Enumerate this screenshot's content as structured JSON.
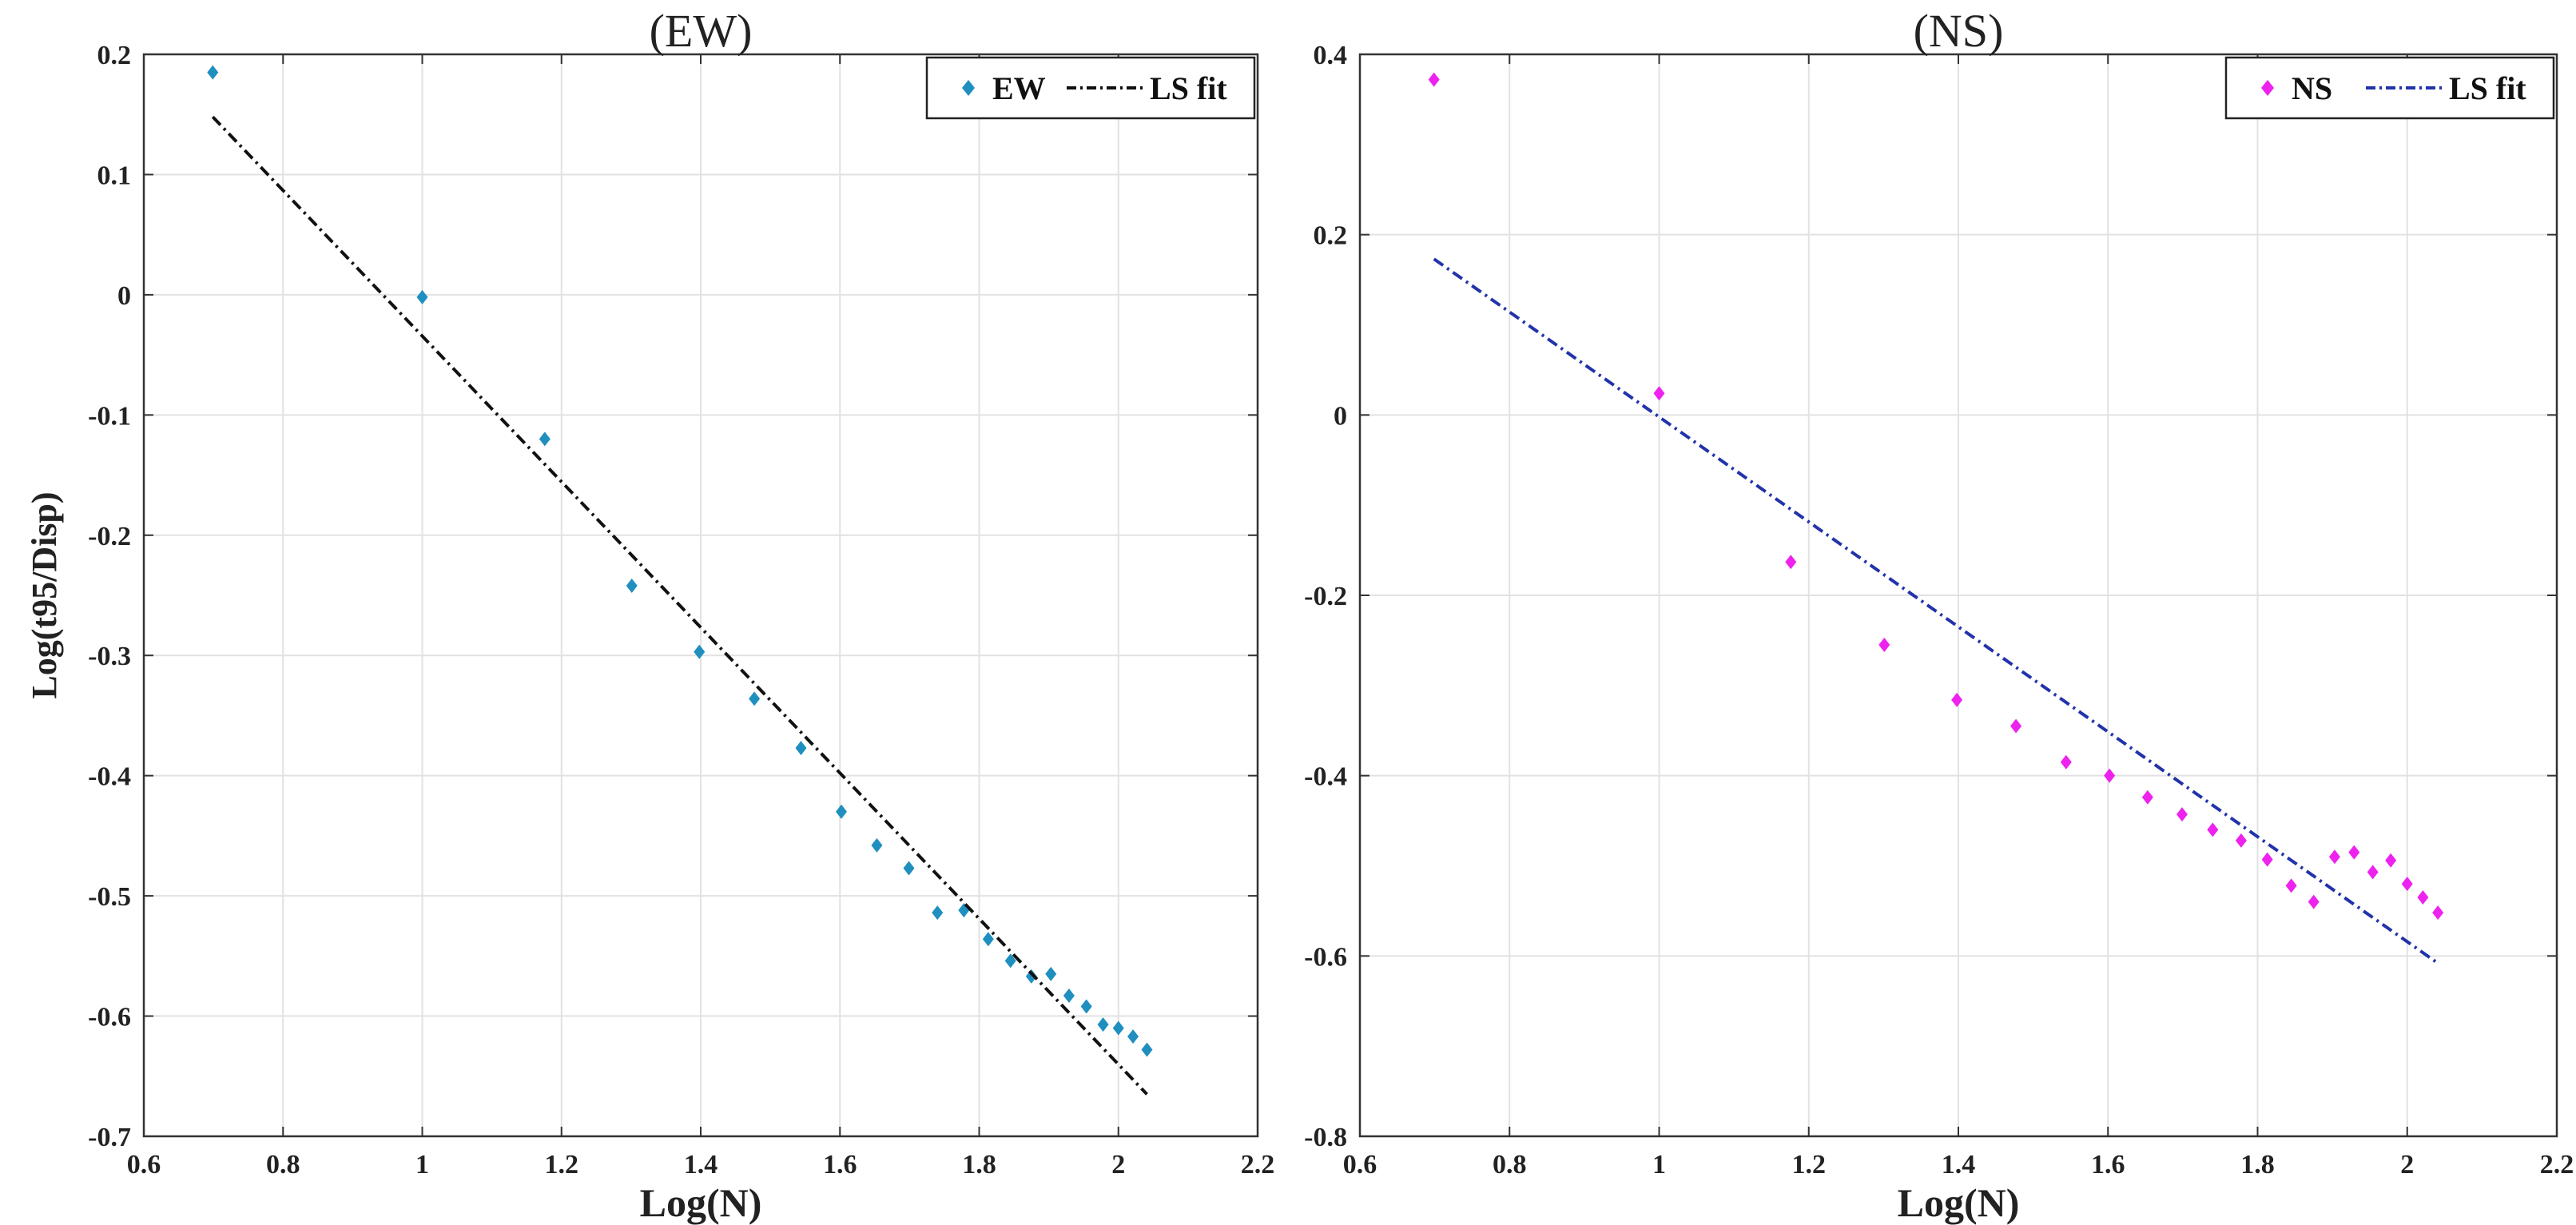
{
  "chart_data": [
    {
      "type": "scatter",
      "title": "(EW)",
      "xlabel": "Log(N)",
      "ylabel": "Log(t95/Disp)",
      "xlim": [
        0.6,
        2.2
      ],
      "ylim": [
        -0.7,
        0.2
      ],
      "xticks": [
        0.6,
        0.8,
        1,
        1.2,
        1.4,
        1.6,
        1.8,
        2,
        2.2
      ],
      "yticks": [
        -0.7,
        -0.6,
        -0.5,
        -0.4,
        -0.3,
        -0.2,
        -0.1,
        0,
        0.1,
        0.2
      ],
      "xtick_labels": [
        "0.6",
        "0.8",
        "1",
        "1.2",
        "1.4",
        "1.6",
        "1.8",
        "2",
        "2.2"
      ],
      "ytick_labels": [
        "-0.7",
        "-0.6",
        "-0.5",
        "-0.4",
        "-0.3",
        "-0.2",
        "-0.1",
        "0",
        "0.1",
        "0.2"
      ],
      "grid": true,
      "legend_position": "top-right",
      "series": [
        {
          "name": "EW",
          "kind": "scatter",
          "color": "#1f8fbf",
          "x": [
            0.699,
            1.0,
            1.176,
            1.301,
            1.398,
            1.477,
            1.544,
            1.602,
            1.653,
            1.699,
            1.74,
            1.778,
            1.813,
            1.845,
            1.875,
            1.903,
            1.929,
            1.954,
            1.978,
            2.0,
            2.021,
            2.041
          ],
          "y": [
            0.185,
            -0.002,
            -0.12,
            -0.242,
            -0.297,
            -0.336,
            -0.377,
            -0.43,
            -0.458,
            -0.477,
            -0.514,
            -0.512,
            -0.536,
            -0.554,
            -0.567,
            -0.565,
            -0.583,
            -0.592,
            -0.607,
            -0.61,
            -0.617,
            -0.628
          ]
        },
        {
          "name": "LS fit",
          "kind": "line",
          "style": "dash-dot",
          "color": "#111111",
          "x": [
            0.699,
            2.041
          ],
          "y": [
            0.148,
            -0.665
          ]
        }
      ]
    },
    {
      "type": "scatter",
      "title": "(NS)",
      "xlabel": "Log(N)",
      "ylabel": "",
      "xlim": [
        0.6,
        2.2
      ],
      "ylim": [
        -0.8,
        0.4
      ],
      "xticks": [
        0.6,
        0.8,
        1,
        1.2,
        1.4,
        1.6,
        1.8,
        2,
        2.2
      ],
      "yticks": [
        -0.8,
        -0.6,
        -0.4,
        -0.2,
        0,
        0.2,
        0.4
      ],
      "xtick_labels": [
        "0.6",
        "0.8",
        "1",
        "1.2",
        "1.4",
        "1.6",
        "1.8",
        "2",
        "2.2"
      ],
      "ytick_labels": [
        "-0.8",
        "-0.6",
        "-0.4",
        "-0.2",
        "0",
        "0.2",
        "0.4"
      ],
      "grid": true,
      "legend_position": "top-right",
      "series": [
        {
          "name": "NS",
          "kind": "scatter",
          "color": "#ee22ee",
          "x": [
            0.699,
            1.0,
            1.176,
            1.301,
            1.398,
            1.477,
            1.544,
            1.602,
            1.653,
            1.699,
            1.74,
            1.778,
            1.813,
            1.845,
            1.875,
            1.903,
            1.929,
            1.954,
            1.978,
            2.0,
            2.021,
            2.041
          ],
          "y": [
            0.372,
            0.024,
            -0.163,
            -0.255,
            -0.316,
            -0.345,
            -0.385,
            -0.4,
            -0.424,
            -0.443,
            -0.46,
            -0.472,
            -0.493,
            -0.522,
            -0.54,
            -0.49,
            -0.485,
            -0.507,
            -0.494,
            -0.52,
            -0.535,
            -0.552
          ]
        },
        {
          "name": "LS fit",
          "kind": "line",
          "style": "dash-dot",
          "color": "#2233aa",
          "x": [
            0.699,
            2.041
          ],
          "y": [
            0.173,
            -0.608
          ]
        }
      ]
    }
  ]
}
